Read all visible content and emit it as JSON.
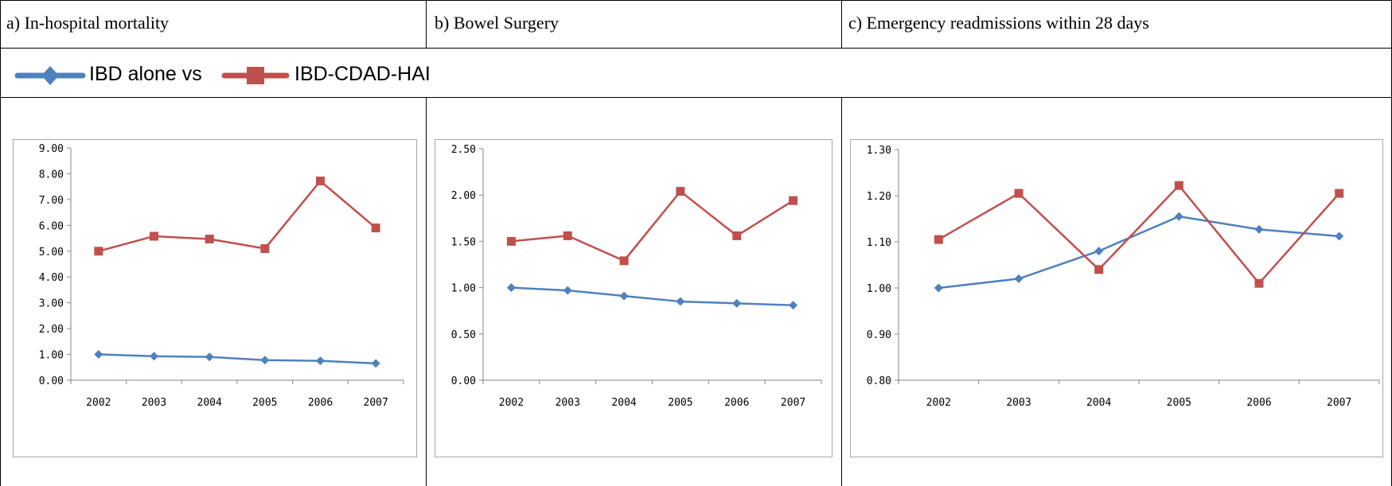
{
  "panels": [
    {
      "title": "a) In-hospital mortality"
    },
    {
      "title": "b) Bowel Surgery"
    },
    {
      "title": "c) Emergency readmissions within 28 days"
    }
  ],
  "legend": {
    "series1_label": "IBD alone vs",
    "series2_label": "IBD-CDAD-HAI"
  },
  "colors": {
    "ibd_alone": "#4f81bd",
    "ibd_cdad_hai": "#c0504d",
    "axis": "#868686"
  },
  "chart_data": [
    {
      "type": "line",
      "categories": [
        "2002",
        "2003",
        "2004",
        "2005",
        "2006",
        "2007"
      ],
      "ylim": [
        0,
        9
      ],
      "yticks": [
        "0.00",
        "1.00",
        "2.00",
        "3.00",
        "4.00",
        "5.00",
        "6.00",
        "7.00",
        "8.00",
        "9.00"
      ],
      "series": [
        {
          "values": [
            1.0,
            0.93,
            0.9,
            0.78,
            0.75,
            0.65
          ]
        },
        {
          "values": [
            5.0,
            5.58,
            5.47,
            5.1,
            7.72,
            5.9
          ]
        }
      ]
    },
    {
      "type": "line",
      "categories": [
        "2002",
        "2003",
        "2004",
        "2005",
        "2006",
        "2007"
      ],
      "ylim": [
        0,
        2.5
      ],
      "yticks": [
        "0.00",
        "0.50",
        "1.00",
        "1.50",
        "2.00",
        "2.50"
      ],
      "series": [
        {
          "values": [
            1.0,
            0.97,
            0.91,
            0.85,
            0.83,
            0.81
          ]
        },
        {
          "values": [
            1.5,
            1.56,
            1.29,
            2.04,
            1.56,
            1.94
          ]
        }
      ]
    },
    {
      "type": "line",
      "categories": [
        "2002",
        "2003",
        "2004",
        "2005",
        "2006",
        "2007"
      ],
      "ylim": [
        0.8,
        1.3
      ],
      "yticks": [
        "0.80",
        "0.90",
        "1.00",
        "1.10",
        "1.20",
        "1.30"
      ],
      "series": [
        {
          "values": [
            1.0,
            1.02,
            1.08,
            1.155,
            1.127,
            1.112
          ]
        },
        {
          "values": [
            1.105,
            1.205,
            1.04,
            1.222,
            1.01,
            1.205
          ]
        }
      ]
    }
  ]
}
